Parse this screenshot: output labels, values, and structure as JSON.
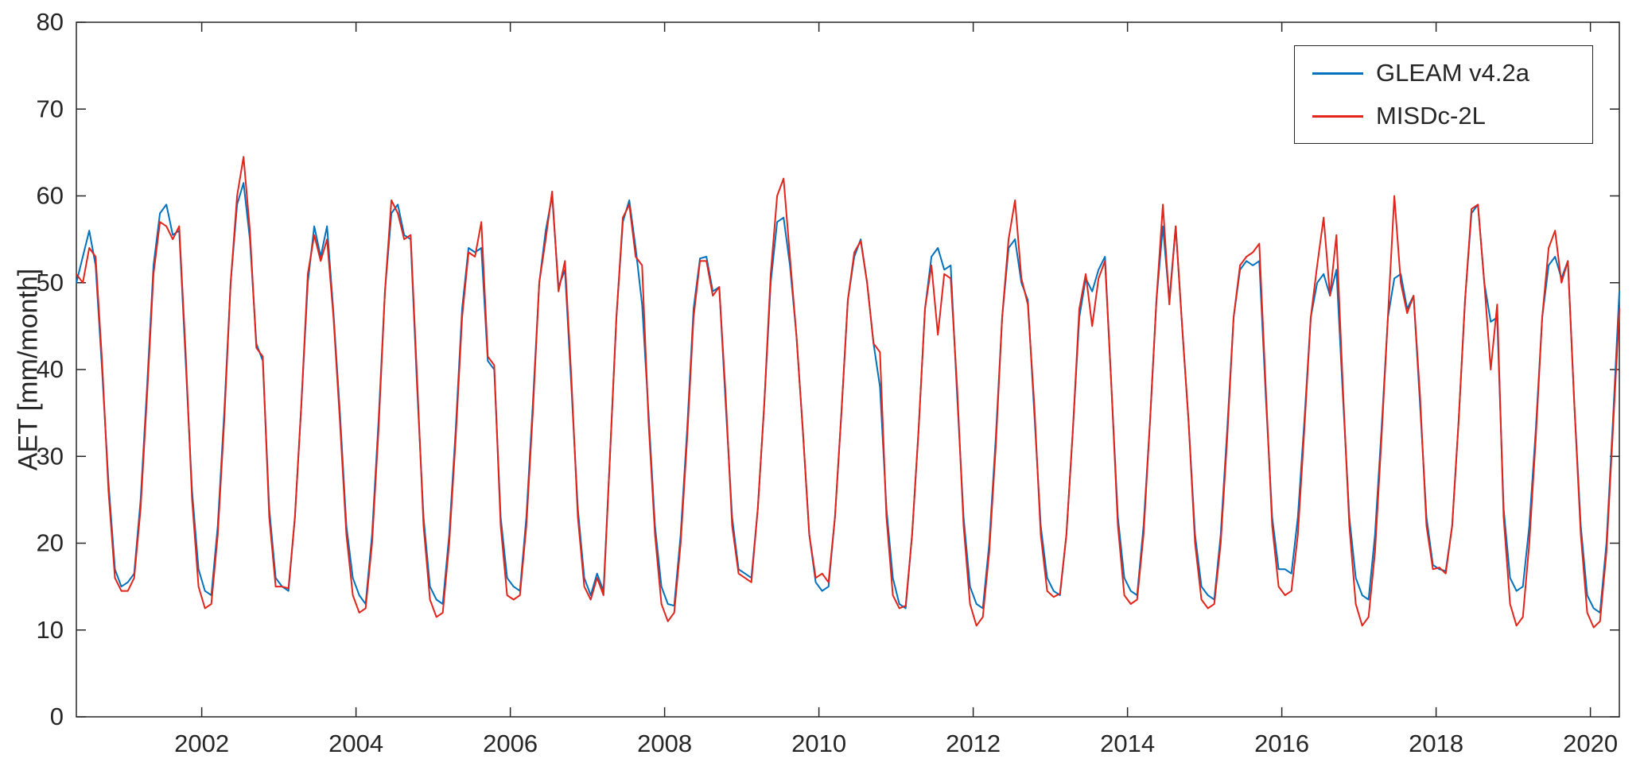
{
  "figure": {
    "background": "#ffffff",
    "axis_color": "#262626"
  },
  "chart_data": {
    "type": "line",
    "title": "",
    "xlabel": "",
    "ylabel": "AET [mm/month]",
    "xlim": [
      2000.375,
      2020.375
    ],
    "ylim": [
      0,
      80
    ],
    "xticks": [
      2002,
      2004,
      2006,
      2008,
      2010,
      2012,
      2014,
      2016,
      2018,
      2020
    ],
    "yticks": [
      0,
      10,
      20,
      30,
      40,
      50,
      60,
      70,
      80
    ],
    "grid": false,
    "legend_position": "top-right",
    "x_start": 2000.375,
    "x_step": 0.0833333,
    "series": [
      {
        "name": "GLEAM v4.2a",
        "color": "#0072bd",
        "values": [
          50,
          53,
          56,
          52,
          40,
          27,
          17,
          15,
          15.5,
          16.5,
          25,
          38,
          52,
          58,
          59,
          55.5,
          56,
          41,
          26,
          17,
          14.5,
          14,
          22,
          35,
          50,
          59,
          61.5,
          55,
          43,
          41,
          24,
          16,
          15,
          14.5,
          23,
          36,
          50,
          56.5,
          53,
          56.5,
          46.5,
          35,
          22,
          16,
          14,
          13,
          21,
          34,
          49,
          58,
          59,
          55.5,
          55,
          38,
          23,
          15,
          13.5,
          13,
          21,
          33,
          47,
          54,
          53.5,
          54,
          41,
          40,
          23,
          16,
          15,
          14.5,
          23,
          36,
          50,
          56,
          60,
          49.5,
          51.5,
          38,
          24,
          16,
          14,
          16.5,
          14.5,
          30,
          46,
          57,
          59.5,
          54,
          47.5,
          35,
          22,
          15,
          13,
          12.8,
          21,
          33,
          47,
          52.8,
          53,
          49,
          49.5,
          36,
          23,
          17,
          16.5,
          16,
          24,
          36,
          50,
          57,
          57.5,
          52,
          44,
          33,
          21,
          15.5,
          14.5,
          15,
          23,
          35,
          48,
          53,
          55,
          50,
          43,
          38,
          24,
          16,
          13,
          12.5,
          21,
          33,
          47,
          53,
          54,
          51.5,
          52,
          37,
          23,
          15,
          13,
          12.5,
          20,
          32,
          46,
          54,
          55,
          50,
          48,
          35,
          22,
          16,
          14.5,
          14,
          21,
          33,
          46,
          50.5,
          49,
          51.5,
          53,
          38,
          23,
          16,
          14.5,
          14,
          22,
          34,
          48,
          56.5,
          48,
          56.5,
          45,
          34,
          21,
          15,
          14,
          13.5,
          21,
          33,
          46,
          51.5,
          52.5,
          52,
          52.5,
          37,
          23,
          17,
          17,
          16.5,
          23,
          34,
          46,
          50,
          51,
          48.5,
          51.5,
          37,
          23,
          16,
          14,
          13.5,
          21,
          33,
          46,
          50.5,
          51,
          47,
          48.5,
          36,
          23,
          17.5,
          17,
          16.8,
          22,
          34,
          48,
          58,
          59,
          50,
          45.5,
          46,
          24,
          16,
          14.5,
          15,
          22,
          33,
          46,
          52,
          53,
          50.5,
          52.5,
          36,
          22,
          14,
          12.5,
          12,
          20,
          34,
          49
        ]
      },
      {
        "name": "MISDc-2L",
        "color": "#e2241b",
        "values": [
          51,
          50,
          54,
          53,
          41,
          26,
          16,
          14.5,
          14.5,
          16,
          24,
          37,
          51,
          57,
          56.5,
          55,
          56.5,
          42,
          25,
          15,
          12.5,
          13,
          21,
          34,
          50,
          60,
          64.5,
          56,
          42.5,
          41.5,
          23,
          15,
          15,
          14.8,
          23,
          36,
          51,
          55.5,
          52.5,
          55,
          46,
          34,
          21,
          14,
          12,
          12.5,
          20,
          33,
          49,
          59.5,
          58,
          55,
          55.5,
          39,
          22,
          13.5,
          11.5,
          12,
          20,
          32,
          46,
          53.5,
          53,
          57,
          41.5,
          40.5,
          22,
          14,
          13.5,
          14,
          22,
          35,
          50,
          55,
          60.5,
          49,
          52.5,
          39,
          23,
          15,
          13.5,
          16,
          14,
          30,
          46,
          57.5,
          59,
          53,
          52,
          34,
          21,
          13,
          11,
          12,
          20,
          32,
          46,
          52.5,
          52.5,
          48.5,
          49.5,
          37,
          22,
          16.5,
          16,
          15.5,
          24,
          36,
          51,
          60,
          62,
          53,
          44,
          33,
          21,
          16,
          16.5,
          15.5,
          23,
          35,
          48,
          53.5,
          54.8,
          50,
          43,
          42,
          23,
          14,
          12.5,
          12.8,
          21,
          33,
          47,
          52,
          44,
          51,
          50.5,
          38,
          22,
          13,
          10.5,
          11.5,
          19,
          31,
          46,
          55,
          59.5,
          50.5,
          47.5,
          36,
          21,
          14.5,
          13.8,
          14.2,
          21,
          33,
          47,
          51,
          45,
          50.5,
          52.5,
          38,
          22,
          14,
          13,
          13.5,
          21,
          34,
          48,
          59,
          47.5,
          56.5,
          45,
          34,
          20,
          13.5,
          12.5,
          13,
          20,
          32,
          46,
          52,
          53,
          53.5,
          54.5,
          38,
          22,
          15,
          14,
          14.5,
          21,
          33,
          46,
          52,
          57.5,
          48.5,
          55.5,
          38,
          22,
          13,
          10.5,
          11.5,
          19,
          32,
          46,
          60,
          50,
          46.5,
          48.5,
          37,
          22,
          17,
          17.2,
          16.5,
          22,
          34,
          48,
          58.5,
          59,
          50,
          40,
          47.5,
          23,
          13,
          10.5,
          11.5,
          20,
          32,
          46,
          54,
          56,
          50,
          52.5,
          36,
          21,
          12,
          10.3,
          11,
          19,
          33,
          47
        ]
      }
    ]
  }
}
